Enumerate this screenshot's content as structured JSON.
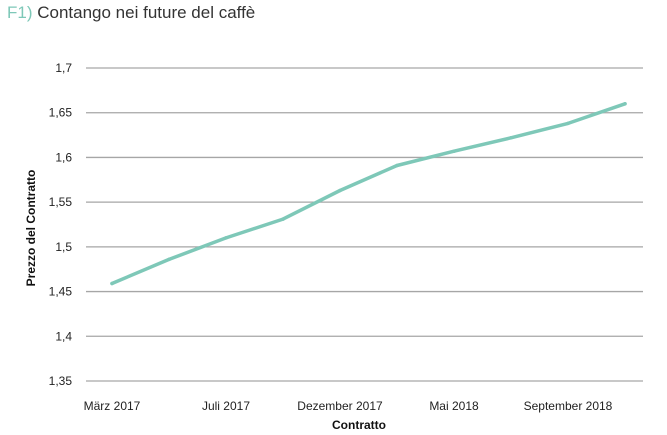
{
  "title": {
    "prefix": "F1)",
    "text": "Contango nei future del caffè"
  },
  "chart_data": {
    "type": "line",
    "title": "Contango nei future del caffè",
    "xlabel": "Contratto",
    "ylabel": "Prezzo del Contratto",
    "x_tick_labels": [
      "März 2017",
      "Juli 2017",
      "Dezember 2017",
      "Mai 2018",
      "September 2018"
    ],
    "y_ticks": [
      1.35,
      1.4,
      1.45,
      1.5,
      1.55,
      1.6,
      1.65,
      1.7
    ],
    "y_tick_labels": [
      "1,35",
      "1,4",
      "1,45",
      "1,5",
      "1,55",
      "1,6",
      "1,65",
      "1,7"
    ],
    "ylim": [
      1.35,
      1.7
    ],
    "grid": true,
    "legend": "none",
    "series": [
      {
        "color": "#7ec8b8",
        "x": [
          0,
          1,
          2,
          3,
          4,
          5,
          6,
          7,
          8,
          9
        ],
        "values": [
          1.459,
          1.486,
          1.51,
          1.531,
          1.563,
          1.591,
          1.607,
          1.622,
          1.638,
          1.66
        ]
      }
    ],
    "x_tick_positions": [
      0,
      2,
      4,
      6,
      8
    ],
    "x_range": [
      0,
      9
    ]
  }
}
